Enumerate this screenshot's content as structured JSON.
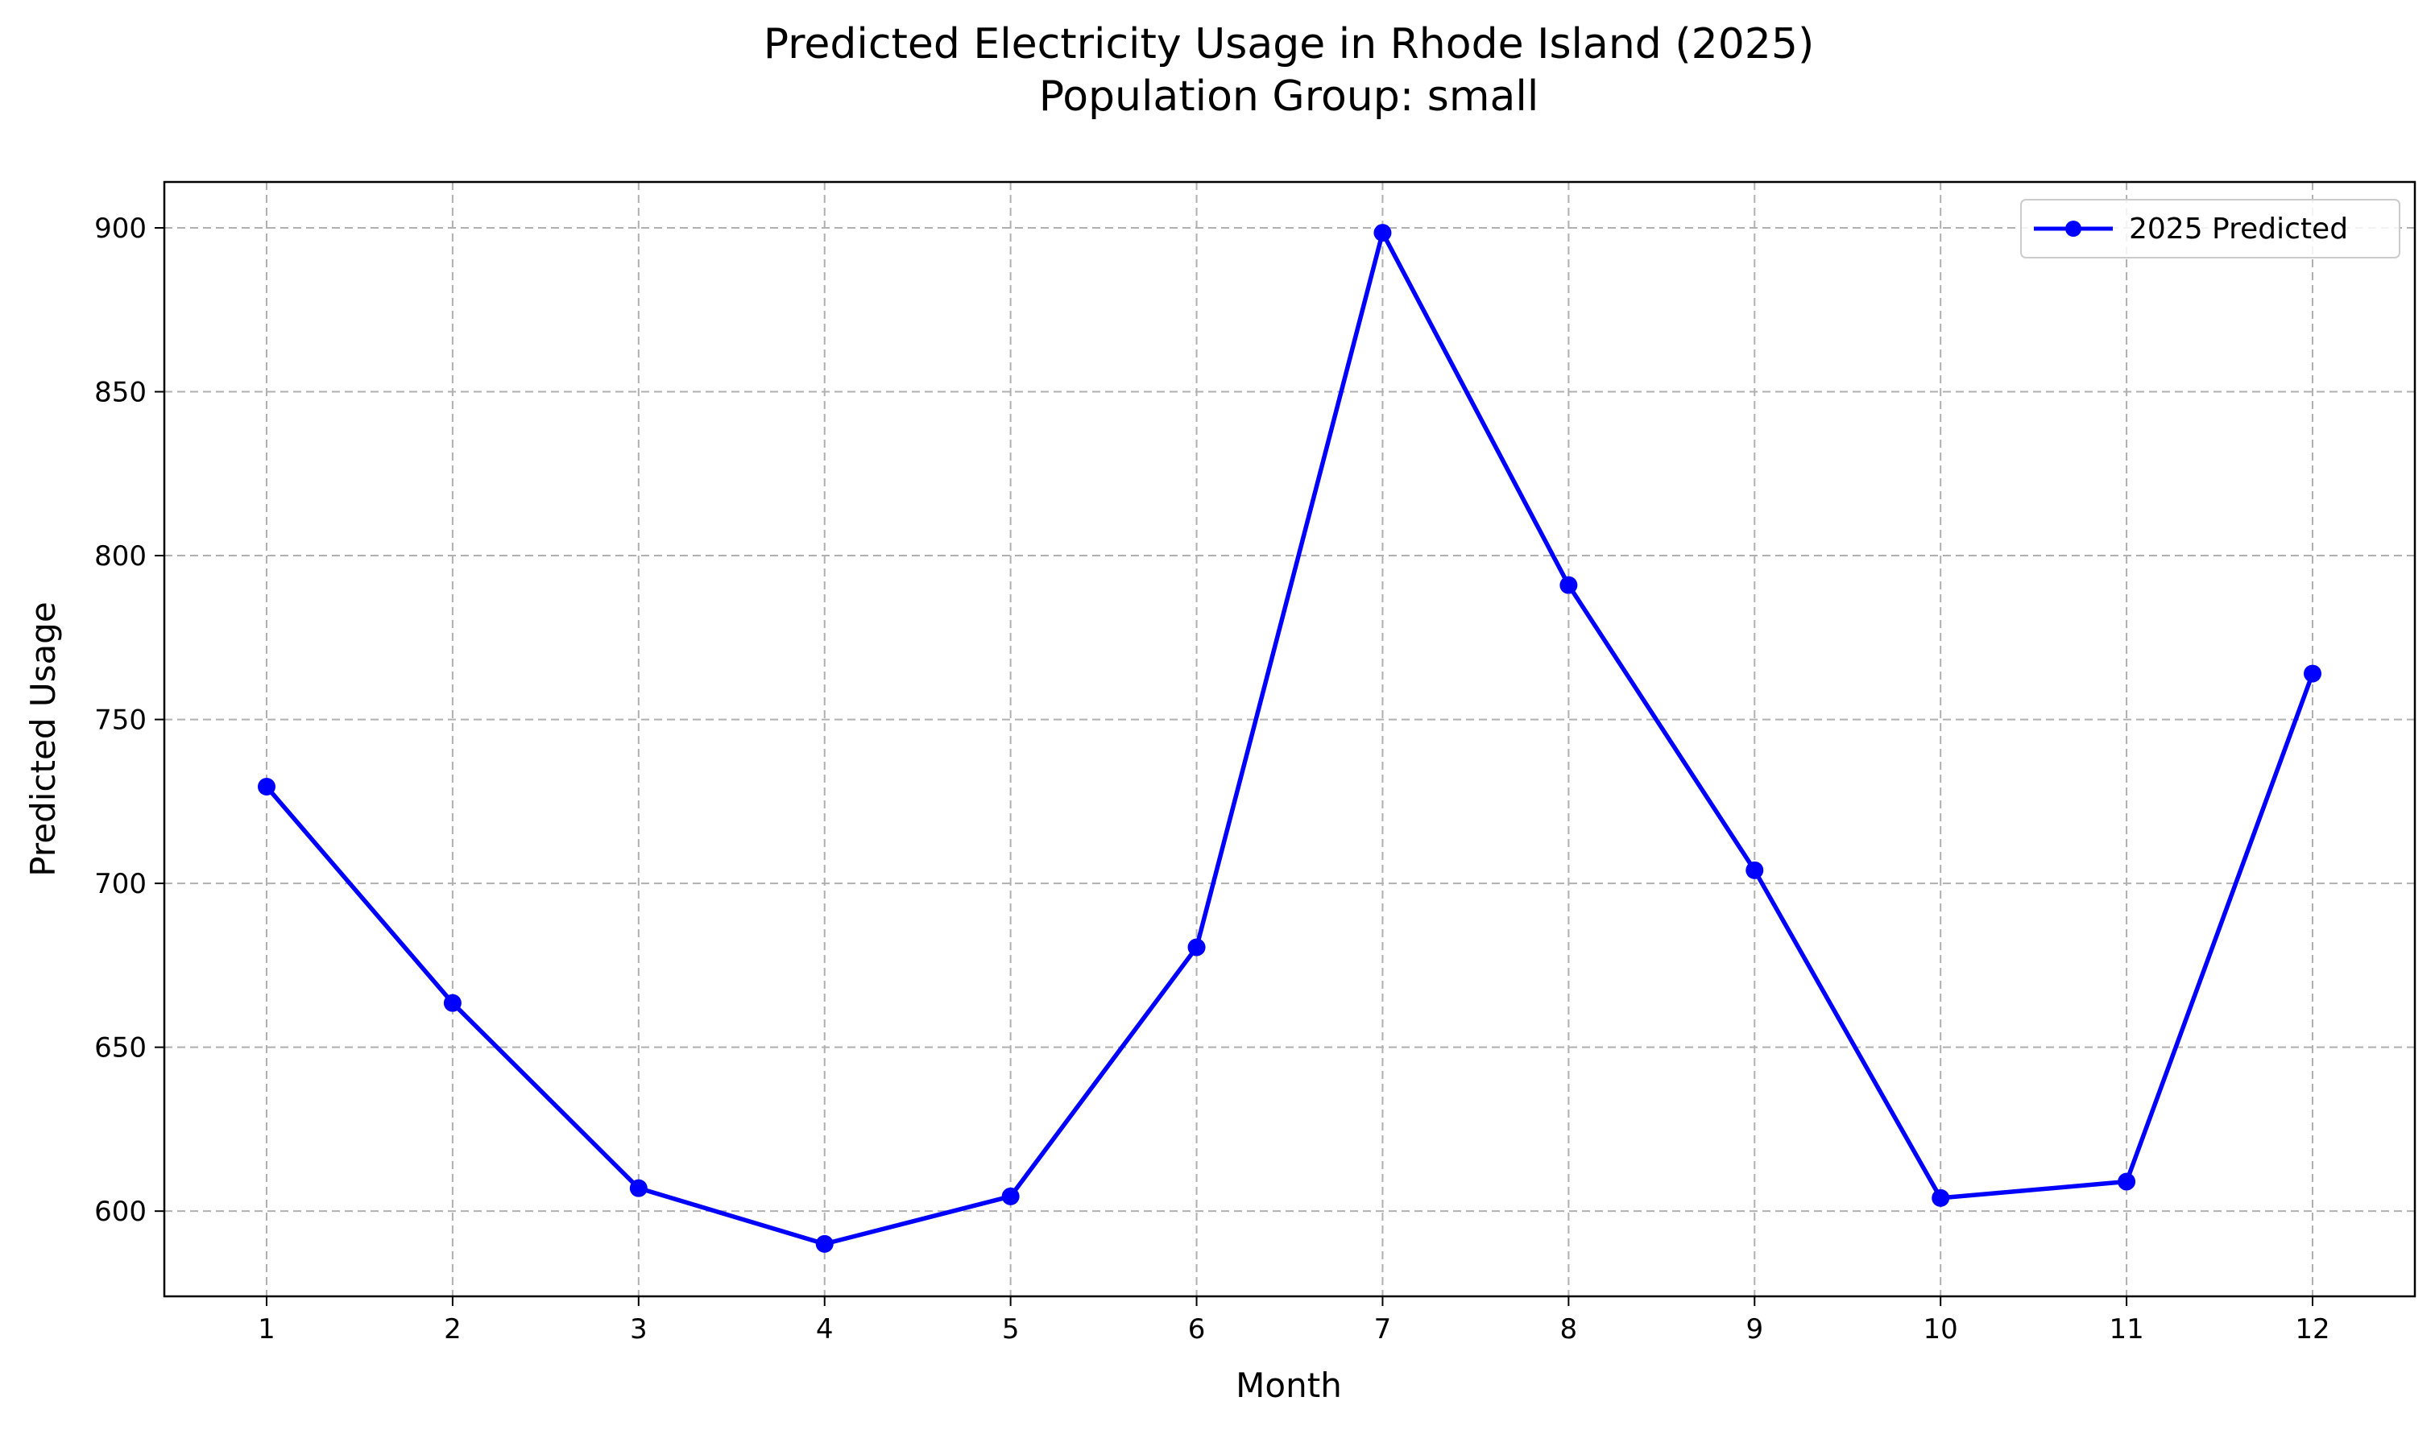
{
  "chart_data": {
    "type": "line",
    "title": "Predicted Electricity Usage in Rhode Island (2025)",
    "subtitle": "Population Group: small",
    "xlabel": "Month",
    "ylabel": "Predicted Usage",
    "x": [
      1,
      2,
      3,
      4,
      5,
      6,
      7,
      8,
      9,
      10,
      11,
      12
    ],
    "x_ticks": [
      "1",
      "2",
      "3",
      "4",
      "5",
      "6",
      "7",
      "8",
      "9",
      "10",
      "11",
      "12"
    ],
    "y_ticks": [
      "600",
      "650",
      "700",
      "750",
      "800",
      "850",
      "900"
    ],
    "y_tick_values": [
      600,
      650,
      700,
      750,
      800,
      850,
      900
    ],
    "xlim": [
      0.45,
      12.55
    ],
    "ylim": [
      574,
      914
    ],
    "grid": true,
    "legend_position": "top-right",
    "series": [
      {
        "name": "2025 Predicted",
        "color": "#0000ff",
        "marker": "circle",
        "values": [
          729.5,
          663.5,
          607,
          590,
          604.5,
          680.5,
          898.5,
          791,
          704,
          604,
          609,
          764
        ]
      }
    ]
  }
}
